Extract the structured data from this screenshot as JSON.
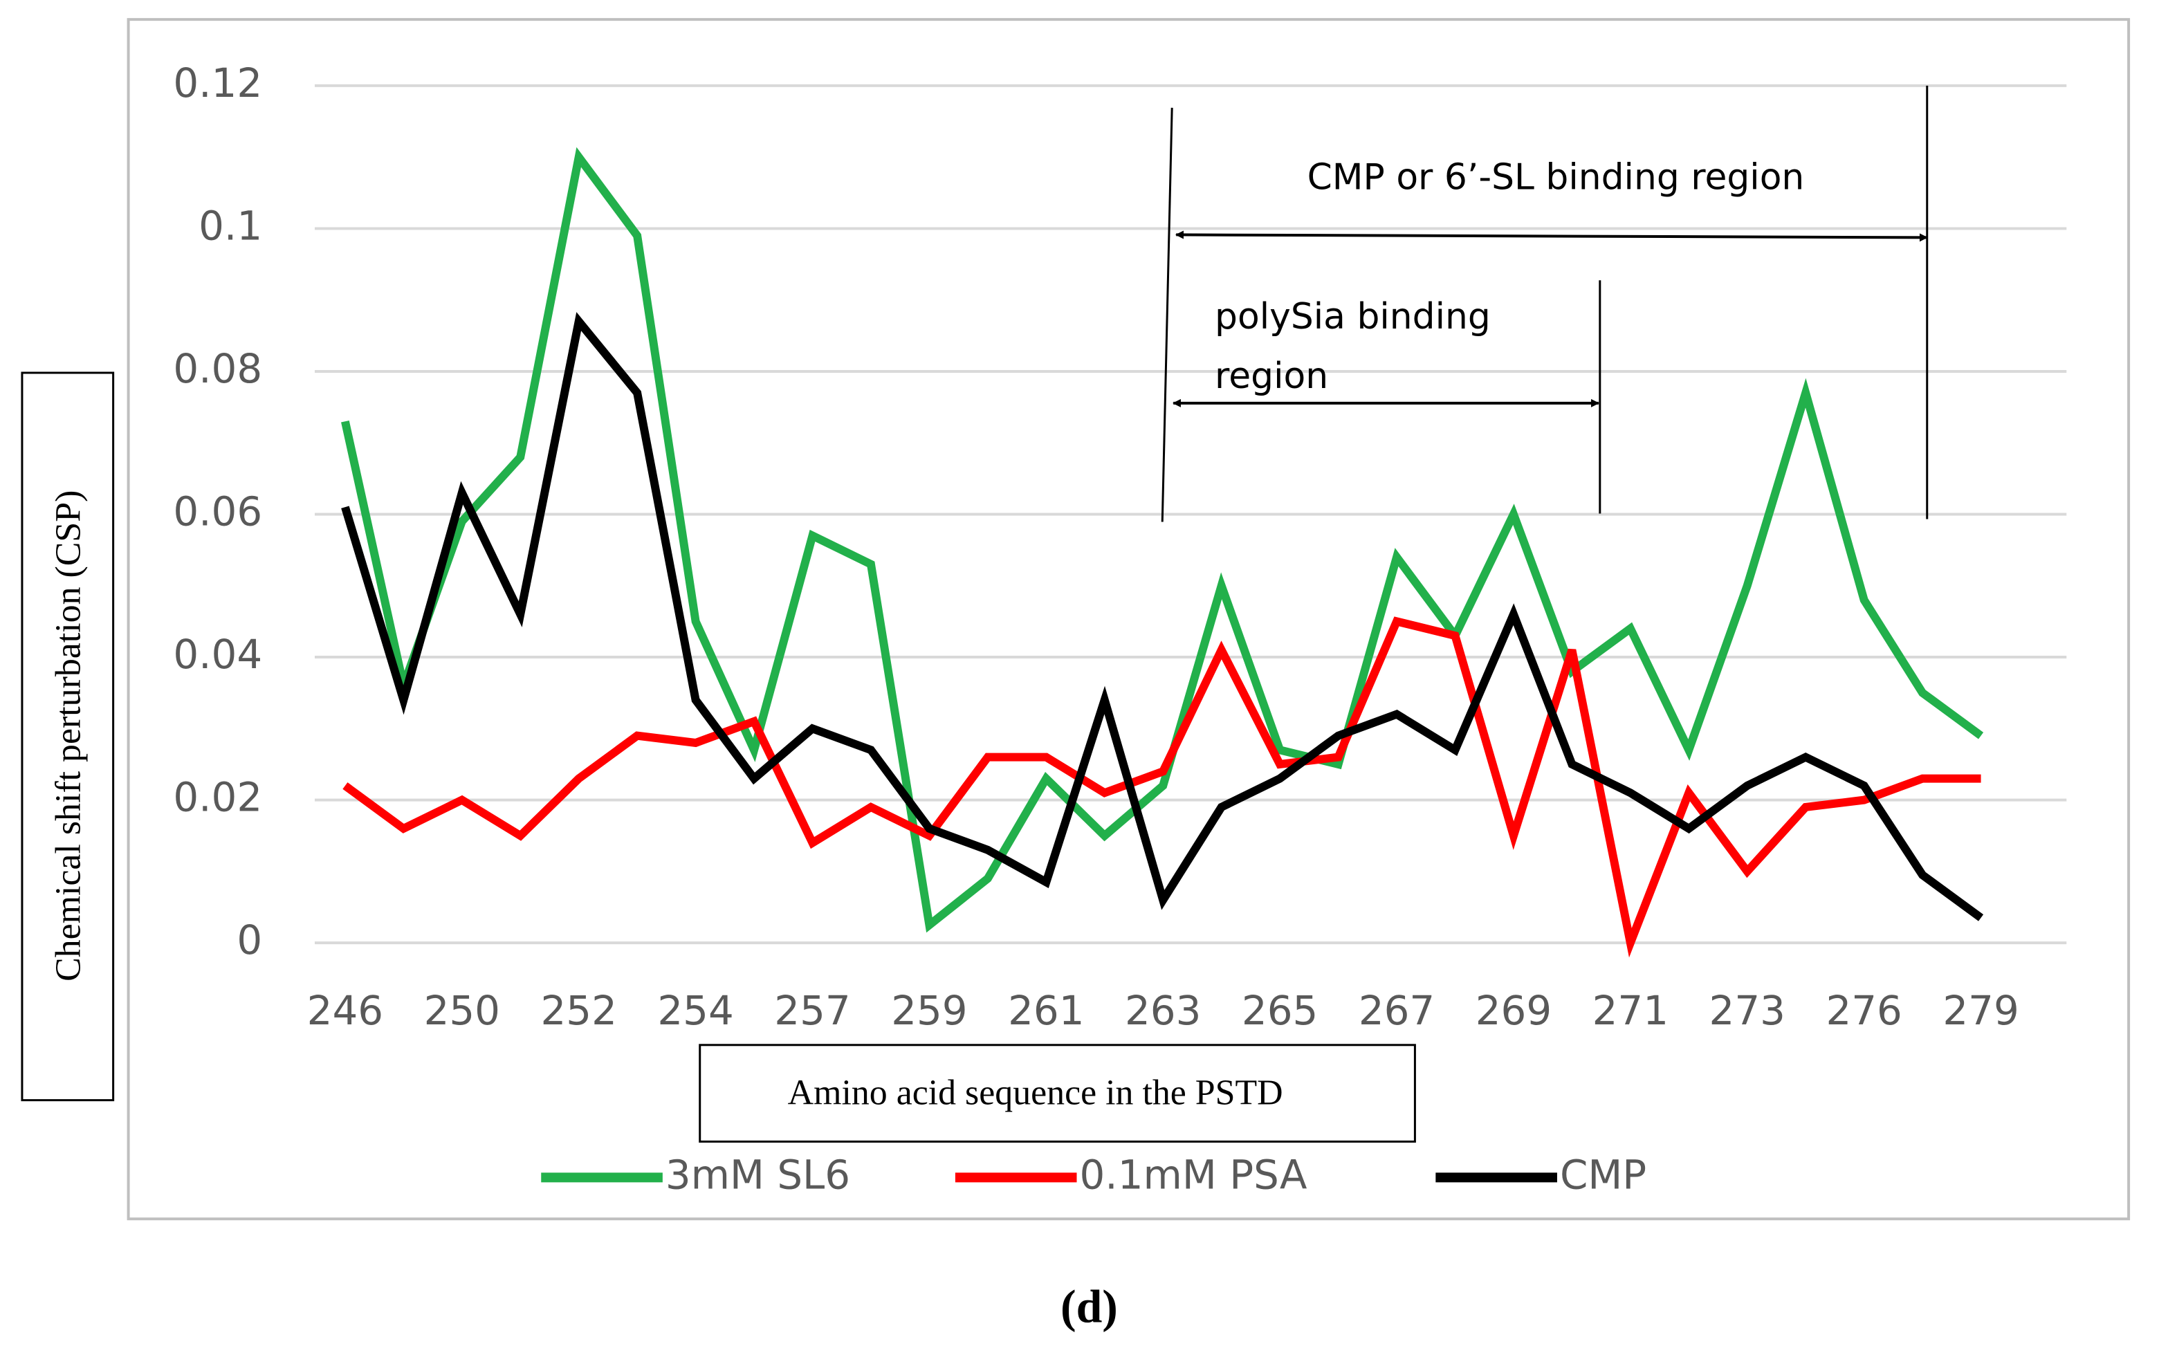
{
  "chart_data": {
    "type": "line",
    "xlabel": "Amino acid sequence in the PSTD",
    "ylabel": "Chemical shift perturbation (CSP)",
    "caption": "(d)",
    "annotations": [
      {
        "text": "CMP or 6’-SL binding region"
      },
      {
        "lines": [
          "polySia binding",
          "region"
        ]
      }
    ],
    "categories": [
      "246",
      null,
      "250",
      null,
      "252",
      null,
      "254",
      null,
      "257",
      null,
      "259",
      null,
      "261",
      null,
      "263",
      null,
      "265",
      null,
      "267",
      null,
      "269",
      null,
      "271",
      null,
      "273",
      null,
      "276",
      null,
      "279"
    ],
    "series": [
      {
        "name": "3mM SL6",
        "color": "#22b04b",
        "values": [
          0.073,
          0.036,
          0.059,
          0.068,
          0.11,
          0.099,
          0.045,
          0.027,
          0.057,
          0.053,
          0.0025,
          0.009,
          0.023,
          0.015,
          0.022,
          0.05,
          0.027,
          0.025,
          0.054,
          0.043,
          0.06,
          0.038,
          0.044,
          0.027,
          0.05,
          0.077,
          0.048,
          0.035,
          0.029
        ]
      },
      {
        "name": "0.1mM PSA",
        "color": "#ff0000",
        "values": [
          0.022,
          0.016,
          0.02,
          0.015,
          0.023,
          0.029,
          0.028,
          0.031,
          0.014,
          0.019,
          0.015,
          0.026,
          0.026,
          0.021,
          0.024,
          0.041,
          0.025,
          0.026,
          0.045,
          0.043,
          0.015,
          0.041,
          0.0,
          0.021,
          0.01,
          0.019,
          0.02,
          0.023,
          0.023
        ]
      },
      {
        "name": "CMP",
        "color": "#000000",
        "values": [
          0.061,
          0.034,
          0.063,
          0.046,
          0.087,
          0.077,
          0.034,
          0.023,
          0.03,
          0.027,
          0.016,
          0.013,
          0.0085,
          0.034,
          0.006,
          0.019,
          0.023,
          0.029,
          0.032,
          0.027,
          0.046,
          0.025,
          0.021,
          0.016,
          0.022,
          0.026,
          0.022,
          0.0095,
          0.0035
        ]
      }
    ],
    "ylim": [
      0,
      0.12
    ],
    "yticks": [
      0,
      0.02,
      0.04,
      0.06,
      0.08,
      0.1,
      0.12
    ],
    "grid": true
  }
}
